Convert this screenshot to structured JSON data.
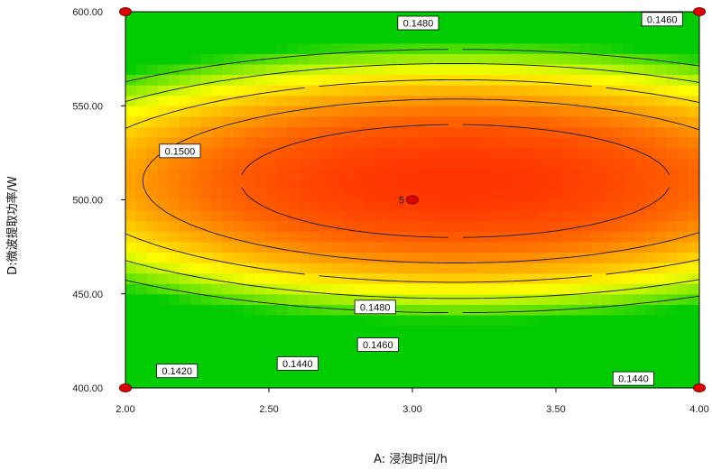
{
  "chart_data": {
    "type": "contour",
    "xlabel": "A: 浸泡时间/h",
    "ylabel": "D:微波提取功率/W",
    "xlim": [
      2.0,
      4.0
    ],
    "ylim": [
      400.0,
      600.0
    ],
    "x_ticks": [
      "2.00",
      "2.50",
      "3.00",
      "3.50",
      "4.00"
    ],
    "y_ticks": [
      "400.00",
      "450.00",
      "500.00",
      "550.00",
      "600.00"
    ],
    "contour_levels": [
      "0.1420",
      "0.1440",
      "0.1460",
      "0.1480",
      "0.1500"
    ],
    "contour_labels": [
      {
        "text": "0.1480",
        "x": 3.02,
        "y": 594
      },
      {
        "text": "0.1460",
        "x": 3.87,
        "y": 596
      },
      {
        "text": "0.1500",
        "x": 2.19,
        "y": 526
      },
      {
        "text": "0.1480",
        "x": 2.87,
        "y": 443
      },
      {
        "text": "0.1460",
        "x": 2.88,
        "y": 423
      },
      {
        "text": "0.1440",
        "x": 2.6,
        "y": 413
      },
      {
        "text": "0.1420",
        "x": 2.18,
        "y": 409
      },
      {
        "text": "0.1440",
        "x": 3.77,
        "y": 405
      }
    ],
    "design_points": [
      {
        "x": 2.0,
        "y": 600.0
      },
      {
        "x": 4.0,
        "y": 600.0
      },
      {
        "x": 2.0,
        "y": 400.0
      },
      {
        "x": 4.0,
        "y": 400.0
      },
      {
        "x": 3.0,
        "y": 500.0,
        "label": "5"
      }
    ],
    "colormap": [
      "#00cc00",
      "#7fe800",
      "#ffff00",
      "#ffb000",
      "#ff6600",
      "#ff3300"
    ]
  }
}
